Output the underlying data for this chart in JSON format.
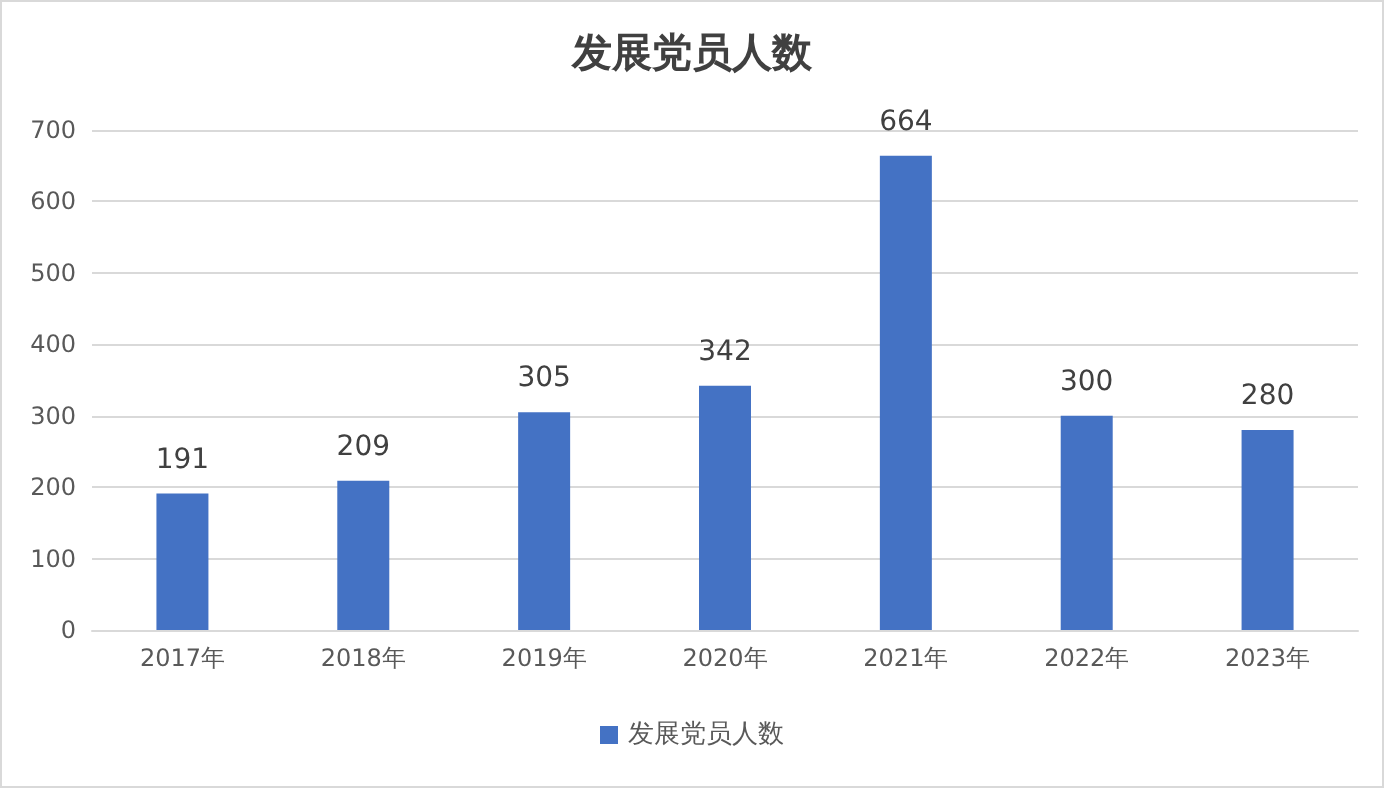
{
  "chart_data": {
    "type": "bar",
    "title": "发展党员人数",
    "categories": [
      "2017年",
      "2018年",
      "2019年",
      "2020年",
      "2021年",
      "2022年",
      "2023年"
    ],
    "series": [
      {
        "name": "发展党员人数",
        "color": "#4472c4",
        "values": [
          191,
          209,
          305,
          342,
          664,
          300,
          280
        ]
      }
    ],
    "ylim": [
      0,
      700
    ],
    "yticks": [
      0,
      100,
      200,
      300,
      400,
      500,
      600,
      700
    ],
    "grid": "y",
    "legend": "bottom",
    "data_labels": true
  }
}
